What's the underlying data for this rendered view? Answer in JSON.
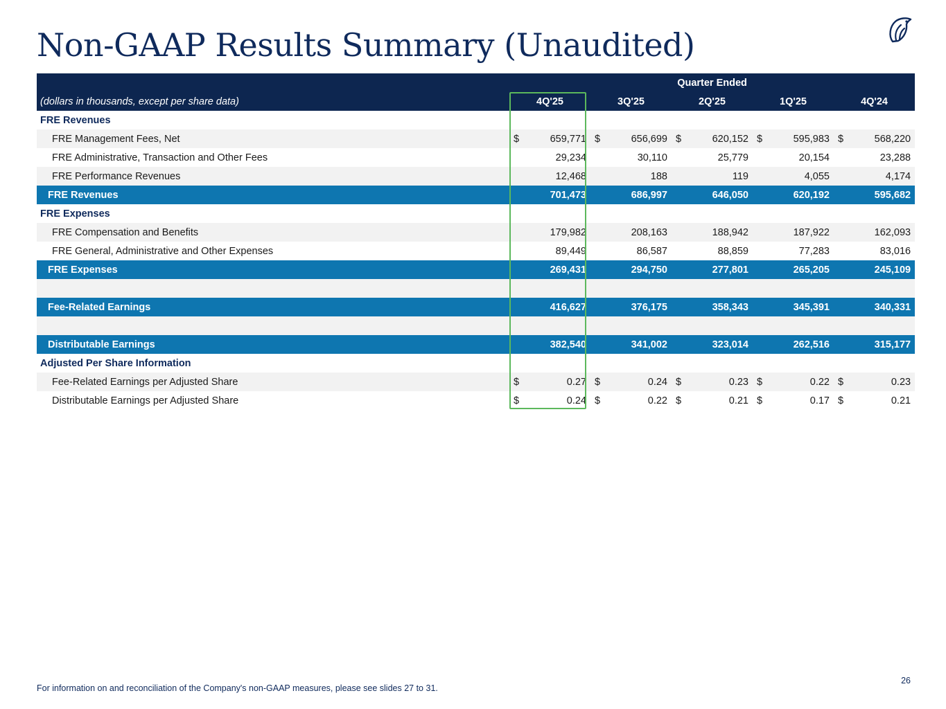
{
  "title": "Non-GAAP Results Summary (Unaudited)",
  "logo": "bird-logo-icon",
  "table": {
    "group_header": "Quarter Ended",
    "units_label": "(dollars in thousands, except per share data)",
    "columns": [
      "4Q'25",
      "3Q'25",
      "2Q'25",
      "1Q'25",
      "4Q'24"
    ],
    "rows": [
      {
        "kind": "section",
        "label": "FRE Revenues"
      },
      {
        "kind": "item",
        "label": "FRE Management Fees, Net",
        "dollar": true,
        "values": [
          "659,771",
          "656,699",
          "620,152",
          "595,983",
          "568,220"
        ]
      },
      {
        "kind": "item",
        "label": "FRE Administrative, Transaction and Other Fees",
        "dollar": false,
        "values": [
          "29,234",
          "30,110",
          "25,779",
          "20,154",
          "23,288"
        ]
      },
      {
        "kind": "item",
        "label": "FRE Performance Revenues",
        "dollar": false,
        "values": [
          "12,468",
          "188",
          "119",
          "4,055",
          "4,174"
        ]
      },
      {
        "kind": "total",
        "label": "FRE Revenues",
        "values": [
          "701,473",
          "686,997",
          "646,050",
          "620,192",
          "595,682"
        ]
      },
      {
        "kind": "section",
        "label": "FRE Expenses"
      },
      {
        "kind": "item",
        "label": "FRE Compensation and Benefits",
        "dollar": false,
        "values": [
          "179,982",
          "208,163",
          "188,942",
          "187,922",
          "162,093"
        ]
      },
      {
        "kind": "item",
        "label": "FRE General, Administrative and Other Expenses",
        "dollar": false,
        "values": [
          "89,449",
          "86,587",
          "88,859",
          "77,283",
          "83,016"
        ]
      },
      {
        "kind": "total",
        "label": "FRE Expenses",
        "values": [
          "269,431",
          "294,750",
          "277,801",
          "265,205",
          "245,109"
        ]
      },
      {
        "kind": "blank"
      },
      {
        "kind": "total",
        "label": "Fee-Related Earnings",
        "values": [
          "416,627",
          "376,175",
          "358,343",
          "345,391",
          "340,331"
        ]
      },
      {
        "kind": "blank"
      },
      {
        "kind": "total",
        "label": "Distributable Earnings",
        "values": [
          "382,540",
          "341,002",
          "323,014",
          "262,516",
          "315,177"
        ]
      },
      {
        "kind": "section",
        "label": "Adjusted Per Share Information"
      },
      {
        "kind": "item",
        "label": "Fee-Related Earnings per Adjusted Share",
        "dollar": true,
        "values": [
          "0.27",
          "0.24",
          "0.23",
          "0.22",
          "0.23"
        ]
      },
      {
        "kind": "item",
        "label": "Distributable Earnings per Adjusted Share",
        "dollar": true,
        "values": [
          "0.24",
          "0.22",
          "0.21",
          "0.17",
          "0.21"
        ]
      }
    ]
  },
  "currency_symbol": "$",
  "footnote": "For information on and reconciliation of the Company's non-GAAP measures, please see slides 27 to 31.",
  "page_number": "26",
  "colors": {
    "navy": "#0d2650",
    "blue": "#0e76b0",
    "highlight": "#5cb85c"
  }
}
